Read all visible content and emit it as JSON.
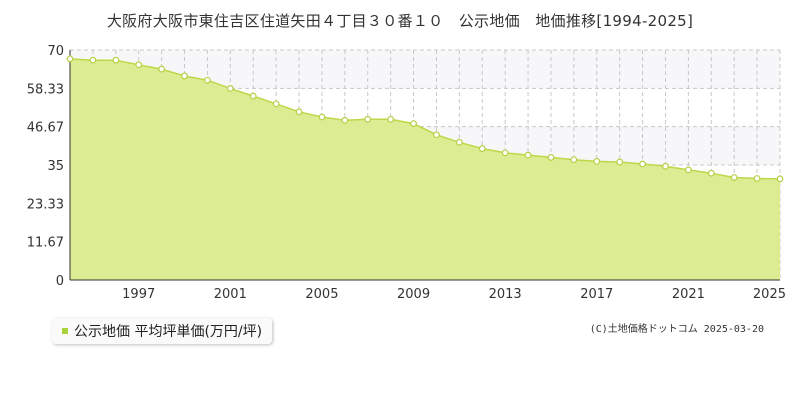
{
  "title": "大阪府大阪市東住吉区住道矢田４丁目３０番１０　公示地価　地価推移[1994-2025]",
  "legend_label": "公示地価 平均坪単価(万円/坪)",
  "credit": "(C)土地価格ドットコム 2025-03-20",
  "colors": {
    "fill": "#dcec92",
    "line": "#bcd848",
    "point_fill": "#ffffff",
    "point_stroke": "#b5d044",
    "grid": "#c8c8c8",
    "band": "#f7f7f9",
    "legend_swatch": "#a8d23a"
  },
  "chart_data": {
    "type": "area",
    "title": "大阪府大阪市東住吉区住道矢田４丁目３０番１０　公示地価　地価推移[1994-2025]",
    "xlabel": "",
    "ylabel": "",
    "ylim": [
      0,
      70
    ],
    "xlim": [
      1994,
      2025
    ],
    "y_ticks": [
      "0",
      "11.67",
      "23.33",
      "35",
      "46.67",
      "58.33",
      "70"
    ],
    "x_ticks": [
      "1997",
      "2001",
      "2005",
      "2009",
      "2013",
      "2017",
      "2021",
      "2025"
    ],
    "grid": true,
    "series": [
      {
        "name": "公示地価 平均坪単価(万円/坪)",
        "x": [
          1994,
          1995,
          1996,
          1997,
          1998,
          1999,
          2000,
          2001,
          2002,
          2003,
          2004,
          2005,
          2006,
          2007,
          2008,
          2009,
          2010,
          2011,
          2012,
          2013,
          2014,
          2015,
          2016,
          2017,
          2018,
          2019,
          2020,
          2021,
          2022,
          2023,
          2024,
          2025
        ],
        "values": [
          67.3,
          66.9,
          66.9,
          65.5,
          64.2,
          62.1,
          60.8,
          58.3,
          56.0,
          53.6,
          51.2,
          49.6,
          48.6,
          48.9,
          48.9,
          47.6,
          44.2,
          41.9,
          40.0,
          38.7,
          38.0,
          37.3,
          36.6,
          36.1,
          35.9,
          35.3,
          34.6,
          33.5,
          32.5,
          31.2,
          30.9,
          30.8
        ]
      }
    ]
  }
}
